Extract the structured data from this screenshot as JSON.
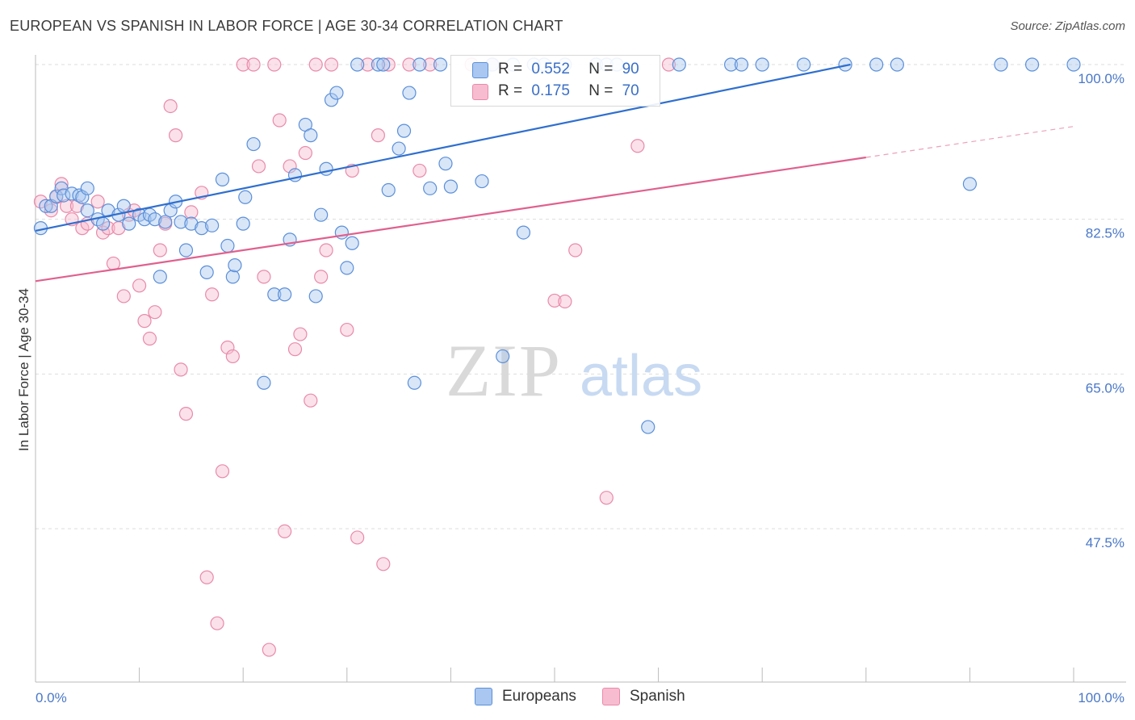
{
  "title": "EUROPEAN VS SPANISH IN LABOR FORCE | AGE 30-34 CORRELATION CHART",
  "source": "Source: ZipAtlas.com",
  "colors": {
    "europeans_fill": "#a9c7f0",
    "europeans_stroke": "#5b8fd9",
    "europeans_line": "#2f6fcf",
    "spanish_fill": "#f7bcd0",
    "spanish_stroke": "#e98aaa",
    "spanish_line": "#e0608e",
    "tick_text": "#4a78c8",
    "grid": "#dddddd"
  },
  "legend": {
    "europeans": {
      "r_label": "R =",
      "r_value": "0.552",
      "n_label": "N =",
      "n_value": "90"
    },
    "spanish": {
      "r_label": "R =",
      "r_value": "0.175",
      "n_label": "N =",
      "n_value": "70"
    }
  },
  "bottom_legend": {
    "europeans": "Europeans",
    "spanish": "Spanish"
  },
  "chart_data": {
    "type": "scatter",
    "xlabel": "",
    "ylabel": "In Labor Force | Age 30-34",
    "xlim": [
      0,
      100
    ],
    "ylim": [
      32,
      102
    ],
    "x_tick_labels": [
      "0.0%",
      "100.0%"
    ],
    "y_ticks": [
      {
        "value": 100,
        "label": "100.0%"
      },
      {
        "value": 82.5,
        "label": "82.5%"
      },
      {
        "value": 65,
        "label": "65.0%"
      },
      {
        "value": 47.5,
        "label": "47.5%"
      }
    ],
    "watermark": {
      "zip": "ZIP",
      "atlas": "atlas"
    },
    "series": [
      {
        "name": "Europeans",
        "r": 0.552,
        "n": 90,
        "trend": {
          "x1": 0,
          "y1": 81.2,
          "x2": 78.5,
          "y2": 100
        },
        "points": [
          [
            0.5,
            81.5
          ],
          [
            1,
            84
          ],
          [
            1.5,
            84
          ],
          [
            2,
            85.1
          ],
          [
            2.5,
            86
          ],
          [
            2.7,
            85.2
          ],
          [
            3.5,
            85.4
          ],
          [
            4.2,
            85.2
          ],
          [
            4.5,
            85
          ],
          [
            5,
            86
          ],
          [
            5,
            83.5
          ],
          [
            6,
            82.5
          ],
          [
            6.5,
            82
          ],
          [
            7,
            83.5
          ],
          [
            8,
            83
          ],
          [
            8.5,
            84
          ],
          [
            9,
            82
          ],
          [
            10,
            83
          ],
          [
            10.5,
            82.5
          ],
          [
            11,
            83
          ],
          [
            11.5,
            82.5
          ],
          [
            12,
            76
          ],
          [
            12.5,
            82.2
          ],
          [
            13,
            83.5
          ],
          [
            13.5,
            84.5
          ],
          [
            14,
            82.2
          ],
          [
            14.5,
            79
          ],
          [
            15,
            82
          ],
          [
            16,
            81.5
          ],
          [
            16.5,
            76.5
          ],
          [
            17,
            81.8
          ],
          [
            18,
            87
          ],
          [
            18.5,
            79.5
          ],
          [
            19,
            76
          ],
          [
            19.2,
            77.3
          ],
          [
            20,
            82
          ],
          [
            20.2,
            85
          ],
          [
            21,
            91
          ],
          [
            22,
            64
          ],
          [
            23,
            74
          ],
          [
            24,
            74
          ],
          [
            24.5,
            80.2
          ],
          [
            25,
            87.5
          ],
          [
            26,
            93.2
          ],
          [
            26.5,
            92
          ],
          [
            27,
            73.8
          ],
          [
            27.5,
            83
          ],
          [
            28,
            88.2
          ],
          [
            28.5,
            96
          ],
          [
            29,
            96.8
          ],
          [
            29.5,
            81
          ],
          [
            30,
            77
          ],
          [
            30.5,
            79.8
          ],
          [
            31,
            100
          ],
          [
            33,
            100
          ],
          [
            33.5,
            100
          ],
          [
            34,
            85.8
          ],
          [
            35,
            90.5
          ],
          [
            35.5,
            92.5
          ],
          [
            36,
            96.8
          ],
          [
            36.5,
            64
          ],
          [
            37,
            100
          ],
          [
            38,
            86
          ],
          [
            39,
            100
          ],
          [
            39.5,
            88.8
          ],
          [
            40,
            86.2
          ],
          [
            43,
            86.8
          ],
          [
            44,
            100
          ],
          [
            45,
            67
          ],
          [
            46,
            100
          ],
          [
            47,
            81
          ],
          [
            48,
            100
          ],
          [
            49,
            100
          ],
          [
            51,
            100
          ],
          [
            54,
            100
          ],
          [
            55,
            100
          ],
          [
            56,
            100
          ],
          [
            59,
            59
          ],
          [
            62,
            100
          ],
          [
            67,
            100
          ],
          [
            68,
            100
          ],
          [
            70,
            100
          ],
          [
            74,
            100
          ],
          [
            78,
            100
          ],
          [
            81,
            100
          ],
          [
            83,
            100
          ],
          [
            90,
            86.5
          ],
          [
            93,
            100
          ],
          [
            96,
            100
          ],
          [
            100,
            100
          ]
        ]
      },
      {
        "name": "Spanish",
        "r": 0.175,
        "n": 70,
        "trend": {
          "x1": 0,
          "y1": 75.5,
          "x2": 80,
          "y2": 89.5
        },
        "trend_dashed": {
          "x1": 80,
          "y1": 89.5,
          "x2": 100,
          "y2": 93
        },
        "points": [
          [
            0.5,
            84.5
          ],
          [
            1.5,
            83.5
          ],
          [
            2,
            85
          ],
          [
            2.5,
            86.5
          ],
          [
            3,
            84
          ],
          [
            3.5,
            82.5
          ],
          [
            4,
            84
          ],
          [
            4.5,
            81.5
          ],
          [
            5,
            82
          ],
          [
            6,
            84.5
          ],
          [
            6.5,
            81
          ],
          [
            7,
            81.5
          ],
          [
            7.5,
            77.5
          ],
          [
            8,
            81.5
          ],
          [
            8.5,
            73.8
          ],
          [
            9,
            83
          ],
          [
            9.5,
            83.5
          ],
          [
            10,
            75
          ],
          [
            10.5,
            71
          ],
          [
            11,
            69
          ],
          [
            11.5,
            72
          ],
          [
            12,
            79
          ],
          [
            12.5,
            82
          ],
          [
            13,
            95.3
          ],
          [
            13.5,
            92
          ],
          [
            14,
            65.5
          ],
          [
            14.5,
            60.5
          ],
          [
            15,
            83.3
          ],
          [
            16,
            85.5
          ],
          [
            16.5,
            42
          ],
          [
            17,
            74
          ],
          [
            17.5,
            36.8
          ],
          [
            18,
            54
          ],
          [
            18.5,
            68
          ],
          [
            19,
            67
          ],
          [
            20,
            100
          ],
          [
            21,
            100
          ],
          [
            21.5,
            88.5
          ],
          [
            22,
            76
          ],
          [
            22.5,
            33.8
          ],
          [
            23,
            100
          ],
          [
            23.5,
            93.7
          ],
          [
            24,
            47.2
          ],
          [
            24.5,
            88.5
          ],
          [
            25,
            67.8
          ],
          [
            25.5,
            69.5
          ],
          [
            26,
            90
          ],
          [
            26.5,
            62
          ],
          [
            27,
            100
          ],
          [
            27.5,
            76
          ],
          [
            28,
            79
          ],
          [
            28.5,
            100
          ],
          [
            30,
            70
          ],
          [
            30.5,
            88
          ],
          [
            31,
            46.5
          ],
          [
            32,
            100
          ],
          [
            33,
            92
          ],
          [
            33.5,
            43.5
          ],
          [
            34,
            100
          ],
          [
            36,
            100
          ],
          [
            37,
            88
          ],
          [
            38,
            100
          ],
          [
            42,
            100
          ],
          [
            44,
            100
          ],
          [
            50,
            73.3
          ],
          [
            51,
            73.2
          ],
          [
            52,
            79
          ],
          [
            55,
            51
          ],
          [
            58,
            90.8
          ],
          [
            61,
            100
          ]
        ]
      }
    ]
  }
}
